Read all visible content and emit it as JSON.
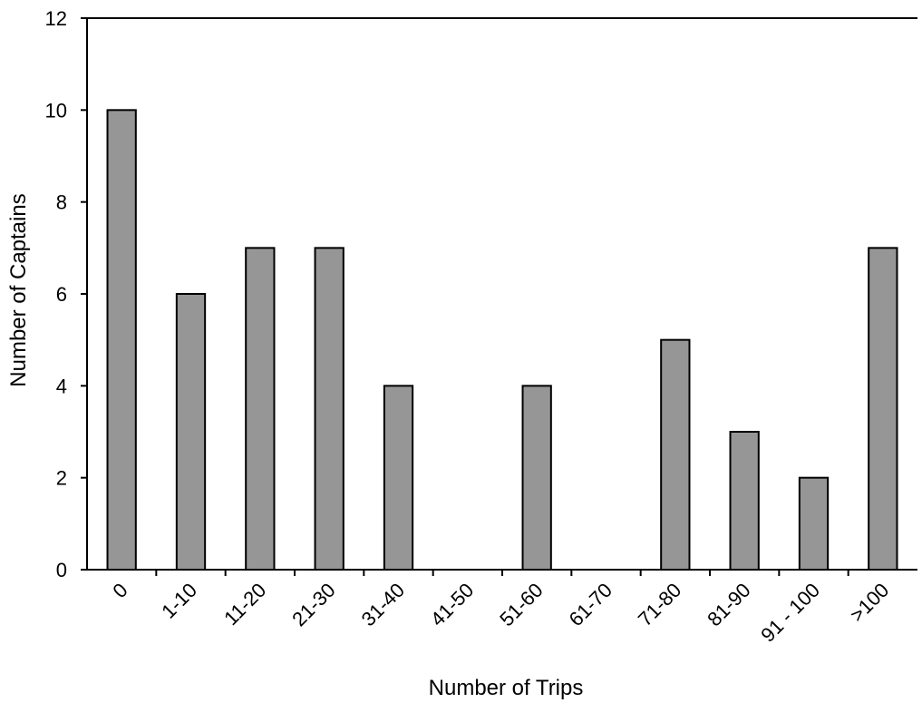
{
  "chart_data": {
    "type": "bar",
    "title": "",
    "xlabel": "Number of Trips",
    "ylabel": "Number of Captains",
    "categories": [
      "0",
      "1-10",
      "11-20",
      "21-30",
      "31-40",
      "41-50",
      "51-60",
      "61-70",
      "71-80",
      "81-90",
      "91 - 100",
      ">100"
    ],
    "values": [
      10,
      6,
      7,
      7,
      4,
      0,
      4,
      0,
      5,
      3,
      2,
      7
    ],
    "ylim": [
      0,
      12
    ],
    "yticks": [
      "0",
      "2",
      "4",
      "6",
      "8",
      "10",
      "12"
    ],
    "grid": false,
    "legend": "none",
    "bar_color": "#969696",
    "bar_edge_color": "#000000"
  }
}
